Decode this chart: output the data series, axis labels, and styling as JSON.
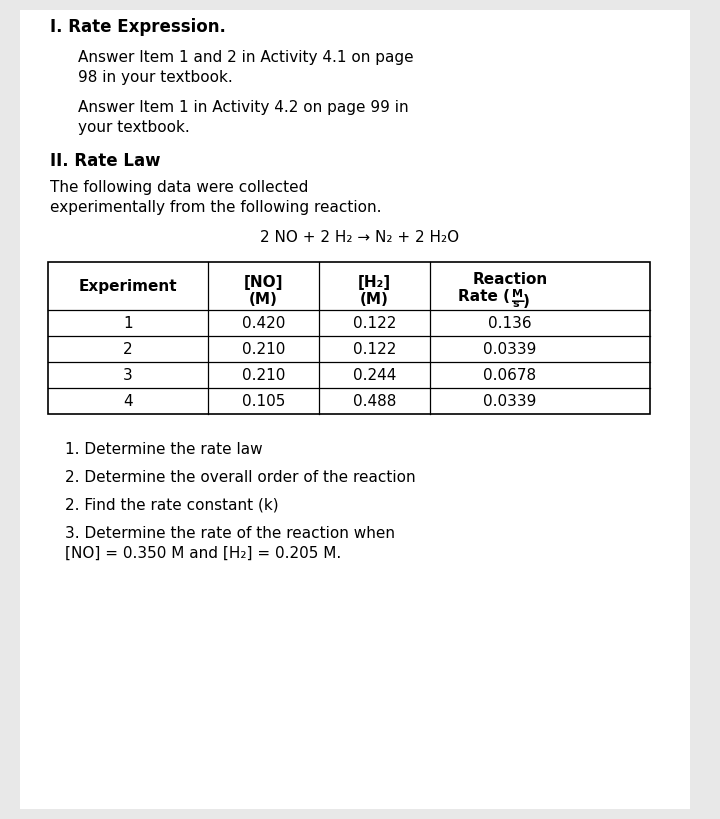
{
  "bg_color": "#e8e8e8",
  "page_bg": "#ffffff",
  "title_I": "I. Rate Expression.",
  "para1_line1": "Answer Item 1 and 2 in Activity 4.1 on page",
  "para1_line2": "98 in your textbook.",
  "para2_line1": "Answer Item 1 in Activity 4.2 on page 99 in",
  "para2_line2": "your textbook.",
  "title_II": "II. Rate Law",
  "para3_line1": "The following data were collected",
  "para3_line2": "experimentally from the following reaction.",
  "reaction": "2 NO + 2 H₂ → N₂ + 2 H₂O",
  "table_col1": [
    "1",
    "2",
    "3",
    "4"
  ],
  "table_col2": [
    "0.420",
    "0.210",
    "0.210",
    "0.105"
  ],
  "table_col3": [
    "0.122",
    "0.122",
    "0.244",
    "0.488"
  ],
  "table_col4": [
    "0.136",
    "0.0339",
    "0.0678",
    "0.0339"
  ],
  "q1": "1. Determine the rate law",
  "q2": "2. Determine the overall order of the reaction",
  "q3": "2. Find the rate constant (k)",
  "q4_line1": "3. Determine the rate of the reaction when",
  "q4_line2": "[NO] = 0.350 M and [H₂] = 0.205 M."
}
